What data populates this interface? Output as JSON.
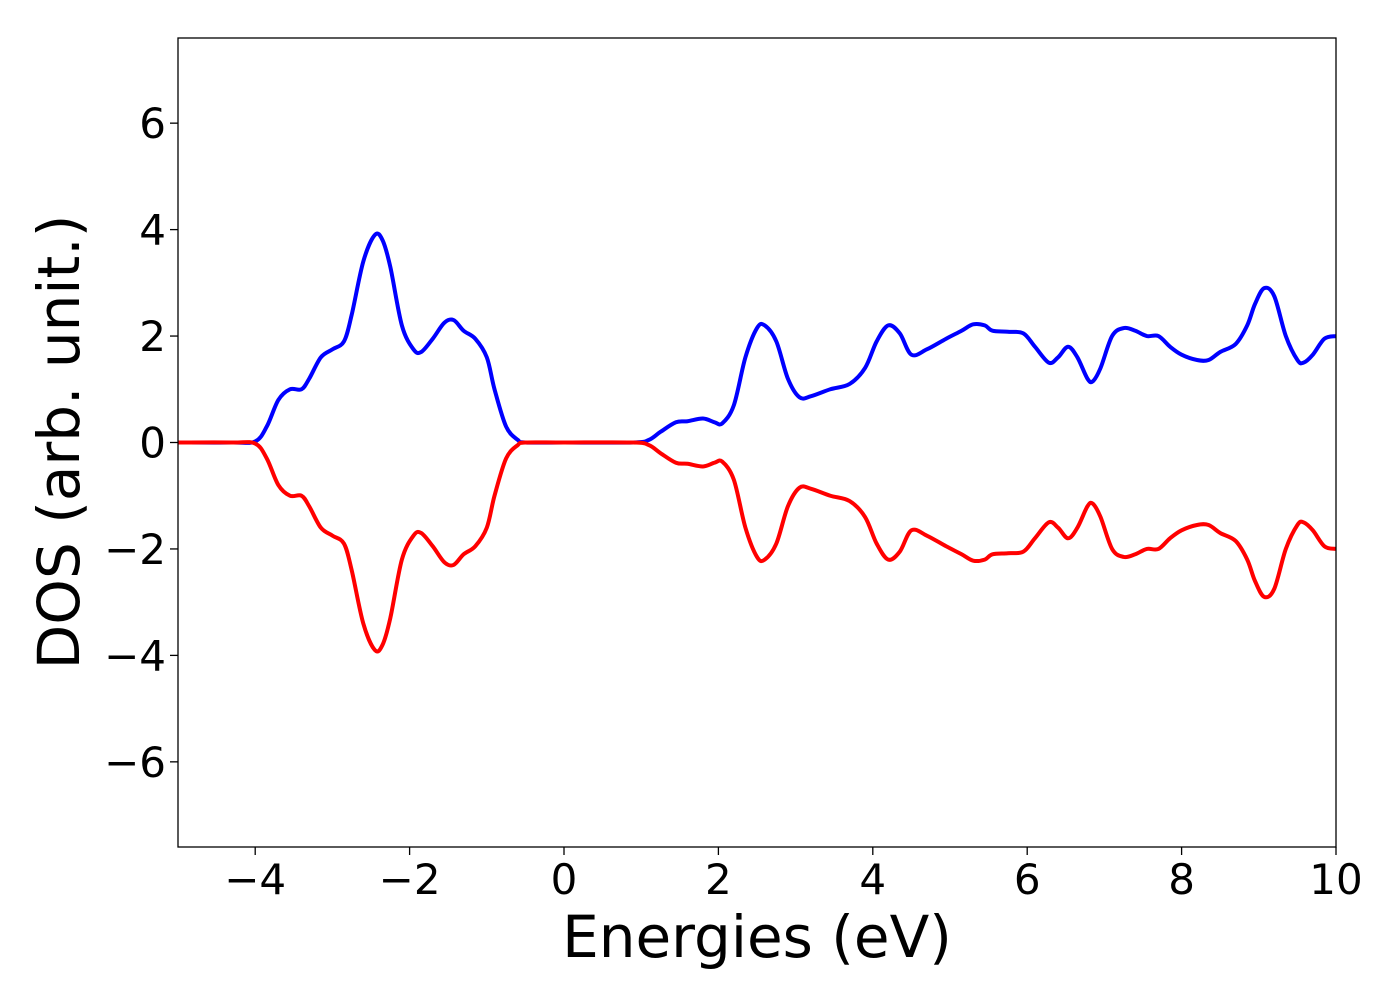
{
  "chart_data": {
    "type": "line",
    "title": "",
    "xlabel": "Energies (eV)",
    "ylabel": "DOS (arb. unit.)",
    "xlim": [
      -5,
      10
    ],
    "ylim": [
      -7.6,
      7.6
    ],
    "xticks": [
      -4,
      -2,
      0,
      2,
      4,
      6,
      8,
      10
    ],
    "xtick_labels": [
      "−4",
      "−2",
      "0",
      "2",
      "4",
      "6",
      "8",
      "10"
    ],
    "yticks": [
      -6,
      -4,
      -2,
      0,
      2,
      4,
      6
    ],
    "ytick_labels": [
      "−6",
      "−4",
      "−2",
      "0",
      "2",
      "4",
      "6"
    ],
    "grid": false,
    "legend": "none",
    "series": [
      {
        "color": "#0000ff",
        "x": [
          -5.0,
          -4.3,
          -4.0,
          -3.85,
          -3.7,
          -3.55,
          -3.4,
          -3.3,
          -3.15,
          -3.0,
          -2.85,
          -2.75,
          -2.6,
          -2.45,
          -2.35,
          -2.25,
          -2.1,
          -1.95,
          -1.85,
          -1.7,
          -1.55,
          -1.43,
          -1.3,
          -1.15,
          -1.0,
          -0.9,
          -0.75,
          -0.6,
          -0.5,
          0.0,
          0.9,
          1.1,
          1.25,
          1.45,
          1.6,
          1.8,
          1.95,
          2.05,
          2.2,
          2.35,
          2.5,
          2.6,
          2.75,
          2.9,
          3.05,
          3.2,
          3.45,
          3.7,
          3.9,
          4.05,
          4.2,
          4.35,
          4.5,
          4.7,
          4.95,
          5.15,
          5.3,
          5.45,
          5.55,
          5.75,
          5.95,
          6.1,
          6.28,
          6.4,
          6.53,
          6.65,
          6.78,
          6.85,
          6.95,
          7.1,
          7.25,
          7.4,
          7.55,
          7.7,
          7.85,
          8.0,
          8.2,
          8.35,
          8.5,
          8.7,
          8.85,
          8.95,
          9.07,
          9.2,
          9.35,
          9.5,
          9.58,
          9.7,
          9.85,
          10.0
        ],
        "values": [
          0,
          0,
          0.02,
          0.3,
          0.8,
          1.0,
          1.0,
          1.2,
          1.6,
          1.75,
          1.9,
          2.4,
          3.4,
          3.9,
          3.8,
          3.3,
          2.2,
          1.75,
          1.7,
          1.95,
          2.25,
          2.3,
          2.1,
          1.95,
          1.6,
          1.0,
          0.3,
          0.05,
          0,
          0,
          0,
          0.05,
          0.2,
          0.38,
          0.4,
          0.45,
          0.38,
          0.36,
          0.7,
          1.6,
          2.15,
          2.2,
          1.9,
          1.2,
          0.85,
          0.87,
          1.0,
          1.1,
          1.4,
          1.9,
          2.2,
          2.05,
          1.65,
          1.75,
          1.95,
          2.1,
          2.22,
          2.2,
          2.1,
          2.08,
          2.05,
          1.8,
          1.5,
          1.6,
          1.8,
          1.6,
          1.2,
          1.15,
          1.4,
          2.0,
          2.15,
          2.1,
          2.0,
          2.0,
          1.8,
          1.65,
          1.55,
          1.55,
          1.7,
          1.85,
          2.2,
          2.6,
          2.9,
          2.75,
          2.0,
          1.55,
          1.5,
          1.65,
          1.95,
          2.0
        ]
      },
      {
        "color": "#ff0000",
        "x": [
          -5.0,
          -4.3,
          -4.0,
          -3.85,
          -3.7,
          -3.55,
          -3.4,
          -3.3,
          -3.15,
          -3.0,
          -2.85,
          -2.75,
          -2.6,
          -2.45,
          -2.35,
          -2.25,
          -2.1,
          -1.95,
          -1.85,
          -1.7,
          -1.55,
          -1.43,
          -1.3,
          -1.15,
          -1.0,
          -0.9,
          -0.75,
          -0.6,
          -0.5,
          0.0,
          0.9,
          1.1,
          1.25,
          1.45,
          1.6,
          1.8,
          1.95,
          2.05,
          2.2,
          2.35,
          2.5,
          2.6,
          2.75,
          2.9,
          3.05,
          3.2,
          3.45,
          3.7,
          3.9,
          4.05,
          4.2,
          4.35,
          4.5,
          4.7,
          4.95,
          5.15,
          5.3,
          5.45,
          5.55,
          5.75,
          5.95,
          6.1,
          6.28,
          6.4,
          6.53,
          6.65,
          6.78,
          6.85,
          6.95,
          7.1,
          7.25,
          7.4,
          7.55,
          7.7,
          7.85,
          8.0,
          8.2,
          8.35,
          8.5,
          8.7,
          8.85,
          8.95,
          9.07,
          9.2,
          9.35,
          9.5,
          9.58,
          9.7,
          9.85,
          10.0
        ],
        "values": [
          0,
          0,
          -0.02,
          -0.3,
          -0.8,
          -1.0,
          -1.0,
          -1.2,
          -1.6,
          -1.75,
          -1.9,
          -2.4,
          -3.4,
          -3.9,
          -3.8,
          -3.3,
          -2.2,
          -1.75,
          -1.7,
          -1.95,
          -2.25,
          -2.3,
          -2.1,
          -1.95,
          -1.6,
          -1.0,
          -0.3,
          -0.05,
          0,
          0,
          0,
          -0.05,
          -0.2,
          -0.38,
          -0.4,
          -0.45,
          -0.38,
          -0.36,
          -0.7,
          -1.6,
          -2.15,
          -2.2,
          -1.9,
          -1.2,
          -0.85,
          -0.87,
          -1.0,
          -1.1,
          -1.4,
          -1.9,
          -2.2,
          -2.05,
          -1.65,
          -1.75,
          -1.95,
          -2.1,
          -2.22,
          -2.2,
          -2.1,
          -2.08,
          -2.05,
          -1.8,
          -1.5,
          -1.6,
          -1.8,
          -1.6,
          -1.2,
          -1.15,
          -1.4,
          -2.0,
          -2.15,
          -2.1,
          -2.0,
          -2.0,
          -1.8,
          -1.65,
          -1.55,
          -1.55,
          -1.7,
          -1.85,
          -2.2,
          -2.6,
          -2.9,
          -2.75,
          -2.0,
          -1.55,
          -1.5,
          -1.65,
          -1.95,
          -2.0
        ]
      }
    ]
  }
}
